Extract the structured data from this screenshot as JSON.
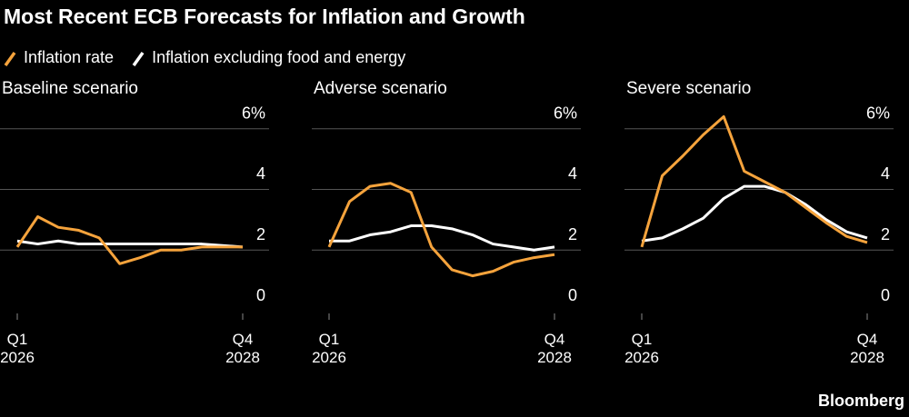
{
  "title": "Most Recent ECB Forecasts for Inflation and Growth",
  "source": "Bloomberg",
  "chart_data": [
    {
      "type": "line",
      "title": "Baseline scenario",
      "categories": [
        "Q1\n2026",
        null,
        null,
        null,
        null,
        null,
        null,
        null,
        null,
        null,
        null,
        "Q4\n2028"
      ],
      "ylim": [
        0,
        6.8
      ],
      "yticks": [
        0,
        2,
        4,
        {
          "value": 6,
          "label": "6%"
        }
      ],
      "grid": true,
      "series": [
        {
          "name": "Inflation rate",
          "color": "#f5a33c",
          "values": [
            2.1,
            3.1,
            2.75,
            2.65,
            2.4,
            1.55,
            1.75,
            2.0,
            2.0,
            2.1,
            2.1,
            2.1
          ]
        },
        {
          "name": "Inflation excluding food and energy",
          "color": "#ffffff",
          "values": [
            2.3,
            2.2,
            2.3,
            2.2,
            2.2,
            2.2,
            2.2,
            2.2,
            2.2,
            2.2,
            2.15,
            2.1
          ]
        }
      ]
    },
    {
      "type": "line",
      "title": "Adverse scenario",
      "categories": [
        "Q1\n2026",
        null,
        null,
        null,
        null,
        null,
        null,
        null,
        null,
        null,
        null,
        "Q4\n2028"
      ],
      "ylim": [
        0,
        6.8
      ],
      "yticks": [
        0,
        2,
        4,
        {
          "value": 6,
          "label": "6%"
        }
      ],
      "grid": true,
      "series": [
        {
          "color": "#f5a33c",
          "values": [
            2.1,
            3.6,
            4.1,
            4.2,
            3.9,
            2.1,
            1.35,
            1.15,
            1.3,
            1.6,
            1.75,
            1.85
          ]
        },
        {
          "color": "#ffffff",
          "values": [
            2.3,
            2.3,
            2.5,
            2.6,
            2.8,
            2.8,
            2.7,
            2.5,
            2.2,
            2.1,
            2.0,
            2.1
          ]
        }
      ]
    },
    {
      "type": "line",
      "title": "Severe scenario",
      "categories": [
        "Q1\n2026",
        null,
        null,
        null,
        null,
        null,
        null,
        null,
        null,
        null,
        null,
        "Q4\n2028"
      ],
      "ylim": [
        0,
        6.8
      ],
      "yticks": [
        0,
        2,
        4,
        {
          "value": 6,
          "label": "6%"
        }
      ],
      "grid": true,
      "series": [
        {
          "color": "#f5a33c",
          "values": [
            2.1,
            4.45,
            5.1,
            5.8,
            6.4,
            4.6,
            4.25,
            3.9,
            3.4,
            2.9,
            2.45,
            2.25
          ]
        },
        {
          "color": "#ffffff",
          "values": [
            2.3,
            2.4,
            2.7,
            3.05,
            3.7,
            4.1,
            4.1,
            3.9,
            3.5,
            3.0,
            2.6,
            2.4
          ]
        }
      ]
    }
  ]
}
